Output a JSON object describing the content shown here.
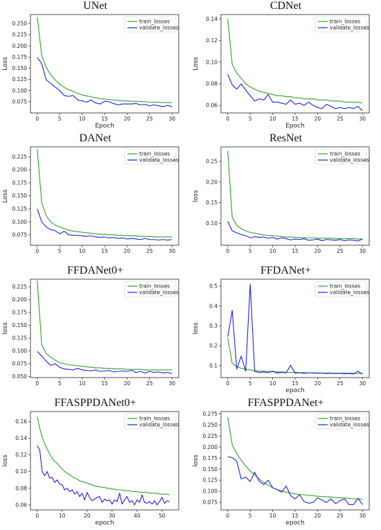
{
  "chart_data": [
    {
      "type": "line",
      "title": "UNet",
      "xlabel": "Epoch",
      "ylabel": "Loss",
      "xlim": [
        -1.5,
        31.5
      ],
      "ylim": [
        0.05,
        0.27
      ],
      "xticks": [
        0,
        5,
        10,
        15,
        20,
        25,
        30
      ],
      "yticks": [
        0.075,
        0.1,
        0.125,
        0.15,
        0.175,
        0.2,
        0.225,
        0.25
      ],
      "ytick_labels": [
        "0.075",
        "0.100",
        "0.125",
        "0.150",
        "0.175",
        "0.200",
        "0.225",
        "0.250"
      ],
      "legend": "top-right",
      "series": [
        {
          "name": "train_losses",
          "color": "#2ca02c",
          "values": [
            0.265,
            0.178,
            0.152,
            0.135,
            0.124,
            0.114,
            0.107,
            0.102,
            0.098,
            0.094,
            0.09,
            0.088,
            0.086,
            0.084,
            0.082,
            0.081,
            0.08,
            0.079,
            0.078,
            0.077,
            0.077,
            0.076,
            0.076,
            0.075,
            0.075,
            0.074,
            0.074,
            0.074,
            0.073,
            0.073,
            0.073
          ]
        },
        {
          "name": "validate_losses",
          "color": "#1f1fdd",
          "values": [
            0.174,
            0.16,
            0.124,
            0.116,
            0.108,
            0.1,
            0.089,
            0.087,
            0.089,
            0.079,
            0.077,
            0.074,
            0.079,
            0.072,
            0.07,
            0.076,
            0.075,
            0.071,
            0.068,
            0.07,
            0.07,
            0.07,
            0.071,
            0.068,
            0.069,
            0.066,
            0.068,
            0.066,
            0.064,
            0.067,
            0.064
          ]
        }
      ]
    },
    {
      "type": "line",
      "title": "CDNet",
      "xlabel": "Epoch",
      "ylabel": "Loss",
      "xlim": [
        -1.5,
        31.5
      ],
      "ylim": [
        0.053,
        0.144
      ],
      "xticks": [
        0,
        5,
        10,
        15,
        20,
        25,
        30
      ],
      "yticks": [
        0.06,
        0.08,
        0.1,
        0.12,
        0.14
      ],
      "ytick_labels": [
        "0.06",
        "0.08",
        "0.10",
        "0.12",
        "0.14"
      ],
      "legend": "top-right",
      "series": [
        {
          "name": "train_losses",
          "color": "#2ca02c",
          "values": [
            0.14,
            0.098,
            0.09,
            0.085,
            0.08,
            0.077,
            0.075,
            0.073,
            0.072,
            0.071,
            0.07,
            0.069,
            0.069,
            0.068,
            0.068,
            0.067,
            0.067,
            0.066,
            0.066,
            0.066,
            0.065,
            0.065,
            0.065,
            0.064,
            0.064,
            0.064,
            0.063,
            0.063,
            0.063,
            0.063,
            0.062
          ]
        },
        {
          "name": "validate_losses",
          "color": "#1f1fdd",
          "values": [
            0.089,
            0.079,
            0.075,
            0.08,
            0.074,
            0.069,
            0.064,
            0.066,
            0.065,
            0.07,
            0.063,
            0.063,
            0.062,
            0.061,
            0.065,
            0.061,
            0.062,
            0.06,
            0.063,
            0.06,
            0.058,
            0.057,
            0.061,
            0.059,
            0.057,
            0.058,
            0.057,
            0.058,
            0.057,
            0.059,
            0.055
          ]
        }
      ]
    },
    {
      "type": "line",
      "title": "DANet",
      "xlabel": "",
      "ylabel": "Loss",
      "xlim": [
        -1.5,
        31.5
      ],
      "ylim": [
        0.055,
        0.244
      ],
      "xticks": [
        0,
        5,
        10,
        15,
        20,
        25,
        30
      ],
      "yticks": [
        0.075,
        0.1,
        0.125,
        0.15,
        0.175,
        0.2,
        0.225
      ],
      "ytick_labels": [
        "0.075",
        "0.100",
        "0.125",
        "0.150",
        "0.175",
        "0.200",
        "0.225"
      ],
      "legend": "top-right",
      "series": [
        {
          "name": "train_losses",
          "color": "#2ca02c",
          "values": [
            0.24,
            0.137,
            0.112,
            0.1,
            0.094,
            0.09,
            0.087,
            0.084,
            0.082,
            0.081,
            0.08,
            0.079,
            0.078,
            0.077,
            0.076,
            0.076,
            0.075,
            0.075,
            0.074,
            0.074,
            0.073,
            0.073,
            0.073,
            0.072,
            0.072,
            0.072,
            0.071,
            0.071,
            0.071,
            0.071,
            0.071
          ]
        },
        {
          "name": "validate_losses",
          "color": "#1f1fdd",
          "values": [
            0.125,
            0.1,
            0.09,
            0.085,
            0.083,
            0.077,
            0.082,
            0.075,
            0.074,
            0.074,
            0.073,
            0.072,
            0.073,
            0.071,
            0.07,
            0.071,
            0.069,
            0.07,
            0.068,
            0.069,
            0.067,
            0.068,
            0.067,
            0.066,
            0.068,
            0.066,
            0.066,
            0.065,
            0.066,
            0.065,
            0.066
          ]
        }
      ]
    },
    {
      "type": "line",
      "title": "ResNet",
      "xlabel": "",
      "ylabel": "loss",
      "xlim": [
        -1.5,
        31.5
      ],
      "ylim": [
        0.047,
        0.285
      ],
      "xticks": [
        0,
        5,
        10,
        15,
        20,
        25,
        30
      ],
      "yticks": [
        0.1,
        0.15,
        0.2,
        0.25
      ],
      "ytick_labels": [
        "0.10",
        "0.15",
        "0.20",
        "0.25"
      ],
      "legend": "top-right",
      "series": [
        {
          "name": "train_losses",
          "color": "#2ca02c",
          "values": [
            0.275,
            0.115,
            0.095,
            0.087,
            0.082,
            0.078,
            0.076,
            0.074,
            0.072,
            0.071,
            0.07,
            0.069,
            0.068,
            0.067,
            0.067,
            0.066,
            0.066,
            0.065,
            0.065,
            0.065,
            0.064,
            0.064,
            0.064,
            0.064,
            0.063,
            0.063,
            0.063,
            0.063,
            0.063,
            0.062,
            0.062
          ]
        },
        {
          "name": "validate_losses",
          "color": "#1f1fdd",
          "values": [
            0.105,
            0.082,
            0.077,
            0.073,
            0.07,
            0.065,
            0.068,
            0.066,
            0.067,
            0.064,
            0.066,
            0.062,
            0.065,
            0.063,
            0.06,
            0.062,
            0.061,
            0.063,
            0.059,
            0.06,
            0.062,
            0.058,
            0.061,
            0.06,
            0.059,
            0.061,
            0.058,
            0.06,
            0.059,
            0.057,
            0.062
          ]
        }
      ]
    },
    {
      "type": "line",
      "title": "FFDANet0+",
      "xlabel": "",
      "ylabel": "loss",
      "xlim": [
        -1.5,
        31.5
      ],
      "ylim": [
        0.048,
        0.24
      ],
      "xticks": [
        0,
        5,
        10,
        15,
        20,
        25,
        30
      ],
      "yticks": [
        0.05,
        0.075,
        0.1,
        0.125,
        0.15,
        0.175,
        0.2,
        0.225
      ],
      "ytick_labels": [
        "0.050",
        "0.075",
        "0.100",
        "0.125",
        "0.150",
        "0.175",
        "0.200",
        "0.225"
      ],
      "legend": "top-right",
      "series": [
        {
          "name": "train_losses",
          "color": "#2ca02c",
          "values": [
            0.237,
            0.112,
            0.095,
            0.088,
            0.082,
            0.077,
            0.075,
            0.073,
            0.072,
            0.071,
            0.07,
            0.069,
            0.068,
            0.067,
            0.067,
            0.066,
            0.066,
            0.065,
            0.065,
            0.065,
            0.064,
            0.064,
            0.064,
            0.064,
            0.063,
            0.063,
            0.063,
            0.063,
            0.063,
            0.063,
            0.063
          ]
        },
        {
          "name": "validate_losses",
          "color": "#1f1fdd",
          "values": [
            0.099,
            0.09,
            0.08,
            0.072,
            0.075,
            0.068,
            0.065,
            0.064,
            0.063,
            0.066,
            0.063,
            0.062,
            0.061,
            0.063,
            0.06,
            0.061,
            0.062,
            0.059,
            0.06,
            0.061,
            0.06,
            0.062,
            0.058,
            0.06,
            0.057,
            0.06,
            0.058,
            0.059,
            0.057,
            0.058,
            0.056
          ]
        }
      ]
    },
    {
      "type": "line",
      "title": "FFDANet+",
      "xlabel": "epoch",
      "ylabel": "loss",
      "xlim": [
        -1.5,
        31.5
      ],
      "ylim": [
        0.04,
        0.535
      ],
      "xticks": [
        0,
        5,
        10,
        15,
        20,
        25,
        30
      ],
      "yticks": [
        0.1,
        0.2,
        0.3,
        0.4,
        0.5
      ],
      "ytick_labels": [
        "0.1",
        "0.2",
        "0.3",
        "0.4",
        "0.5"
      ],
      "legend": "top-right",
      "series": [
        {
          "name": "train_losses",
          "color": "#2ca02c",
          "values": [
            0.24,
            0.112,
            0.095,
            0.087,
            0.082,
            0.078,
            0.075,
            0.073,
            0.072,
            0.071,
            0.07,
            0.069,
            0.068,
            0.067,
            0.066,
            0.066,
            0.065,
            0.065,
            0.064,
            0.064,
            0.064,
            0.063,
            0.063,
            0.063,
            0.062,
            0.062,
            0.062,
            0.062,
            0.062,
            0.061,
            0.061
          ]
        },
        {
          "name": "validate_losses",
          "color": "#1f1fdd",
          "values": [
            0.245,
            0.378,
            0.083,
            0.148,
            0.072,
            0.51,
            0.071,
            0.066,
            0.068,
            0.065,
            0.072,
            0.063,
            0.066,
            0.064,
            0.102,
            0.062,
            0.065,
            0.061,
            0.064,
            0.063,
            0.062,
            0.063,
            0.06,
            0.062,
            0.06,
            0.062,
            0.059,
            0.061,
            0.058,
            0.072,
            0.057
          ]
        }
      ]
    },
    {
      "type": "line",
      "title": "FFASPPDANet0+",
      "xlabel": "epoch",
      "ylabel": "loss",
      "xlim": [
        -2.7,
        56.7
      ],
      "ylim": [
        0.054,
        0.172
      ],
      "xticks": [
        0,
        10,
        20,
        30,
        40,
        50
      ],
      "yticks": [
        0.06,
        0.08,
        0.1,
        0.12,
        0.14,
        0.16
      ],
      "ytick_labels": [
        "0.06",
        "0.08",
        "0.10",
        "0.12",
        "0.14",
        "0.16"
      ],
      "legend": "top-right",
      "series": [
        {
          "name": "train_losses",
          "color": "#2ca02c",
          "values": [
            0.166,
            0.152,
            0.141,
            0.133,
            0.127,
            0.121,
            0.116,
            0.112,
            0.11,
            0.106,
            0.103,
            0.1,
            0.098,
            0.096,
            0.094,
            0.092,
            0.091,
            0.089,
            0.088,
            0.087,
            0.086,
            0.085,
            0.084,
            0.083,
            0.082,
            0.082,
            0.081,
            0.081,
            0.08,
            0.08,
            0.079,
            0.079,
            0.078,
            0.078,
            0.078,
            0.077,
            0.077,
            0.077,
            0.076,
            0.076,
            0.076,
            0.075,
            0.075,
            0.075,
            0.075,
            0.074,
            0.074,
            0.074,
            0.074,
            0.073,
            0.073,
            0.073,
            0.073,
            0.072
          ]
        },
        {
          "name": "validate_losses",
          "color": "#1f1fdd",
          "values": [
            0.131,
            0.126,
            0.1,
            0.095,
            0.1,
            0.092,
            0.093,
            0.087,
            0.09,
            0.085,
            0.084,
            0.078,
            0.08,
            0.076,
            0.078,
            0.073,
            0.076,
            0.07,
            0.074,
            0.066,
            0.075,
            0.069,
            0.065,
            0.067,
            0.069,
            0.07,
            0.063,
            0.067,
            0.065,
            0.066,
            0.061,
            0.066,
            0.064,
            0.074,
            0.061,
            0.066,
            0.07,
            0.063,
            0.065,
            0.06,
            0.066,
            0.063,
            0.072,
            0.063,
            0.062,
            0.064,
            0.061,
            0.065,
            0.06,
            0.064,
            0.069,
            0.062,
            0.065,
            0.064
          ]
        }
      ]
    },
    {
      "type": "line",
      "title": "FFASPPDANet+",
      "xlabel": "epoch",
      "ylabel": "loss",
      "xlim": [
        -1.5,
        31.5
      ],
      "ylim": [
        0.058,
        0.28
      ],
      "xticks": [
        0,
        5,
        10,
        15,
        20,
        25,
        30
      ],
      "yticks": [
        0.075,
        0.1,
        0.125,
        0.15,
        0.175,
        0.2,
        0.225,
        0.25,
        0.275
      ],
      "ytick_labels": [
        "0.075",
        "0.100",
        "0.125",
        "0.150",
        "0.175",
        "0.200",
        "0.225",
        "0.250",
        "0.275"
      ],
      "legend": "top-right",
      "series": [
        {
          "name": "train_losses",
          "color": "#2ca02c",
          "values": [
            0.268,
            0.205,
            0.185,
            0.17,
            0.157,
            0.146,
            0.137,
            0.128,
            0.12,
            0.114,
            0.108,
            0.104,
            0.101,
            0.098,
            0.096,
            0.094,
            0.093,
            0.092,
            0.091,
            0.09,
            0.089,
            0.088,
            0.088,
            0.087,
            0.086,
            0.085,
            0.085,
            0.084,
            0.083,
            0.083,
            0.082
          ]
        },
        {
          "name": "validate_losses",
          "color": "#1f1fdd",
          "values": [
            0.178,
            0.176,
            0.168,
            0.128,
            0.132,
            0.122,
            0.143,
            0.123,
            0.115,
            0.125,
            0.108,
            0.104,
            0.098,
            0.112,
            0.09,
            0.083,
            0.092,
            0.077,
            0.073,
            0.075,
            0.085,
            0.08,
            0.075,
            0.083,
            0.072,
            0.079,
            0.083,
            0.07,
            0.07,
            0.084,
            0.07
          ]
        }
      ]
    }
  ]
}
